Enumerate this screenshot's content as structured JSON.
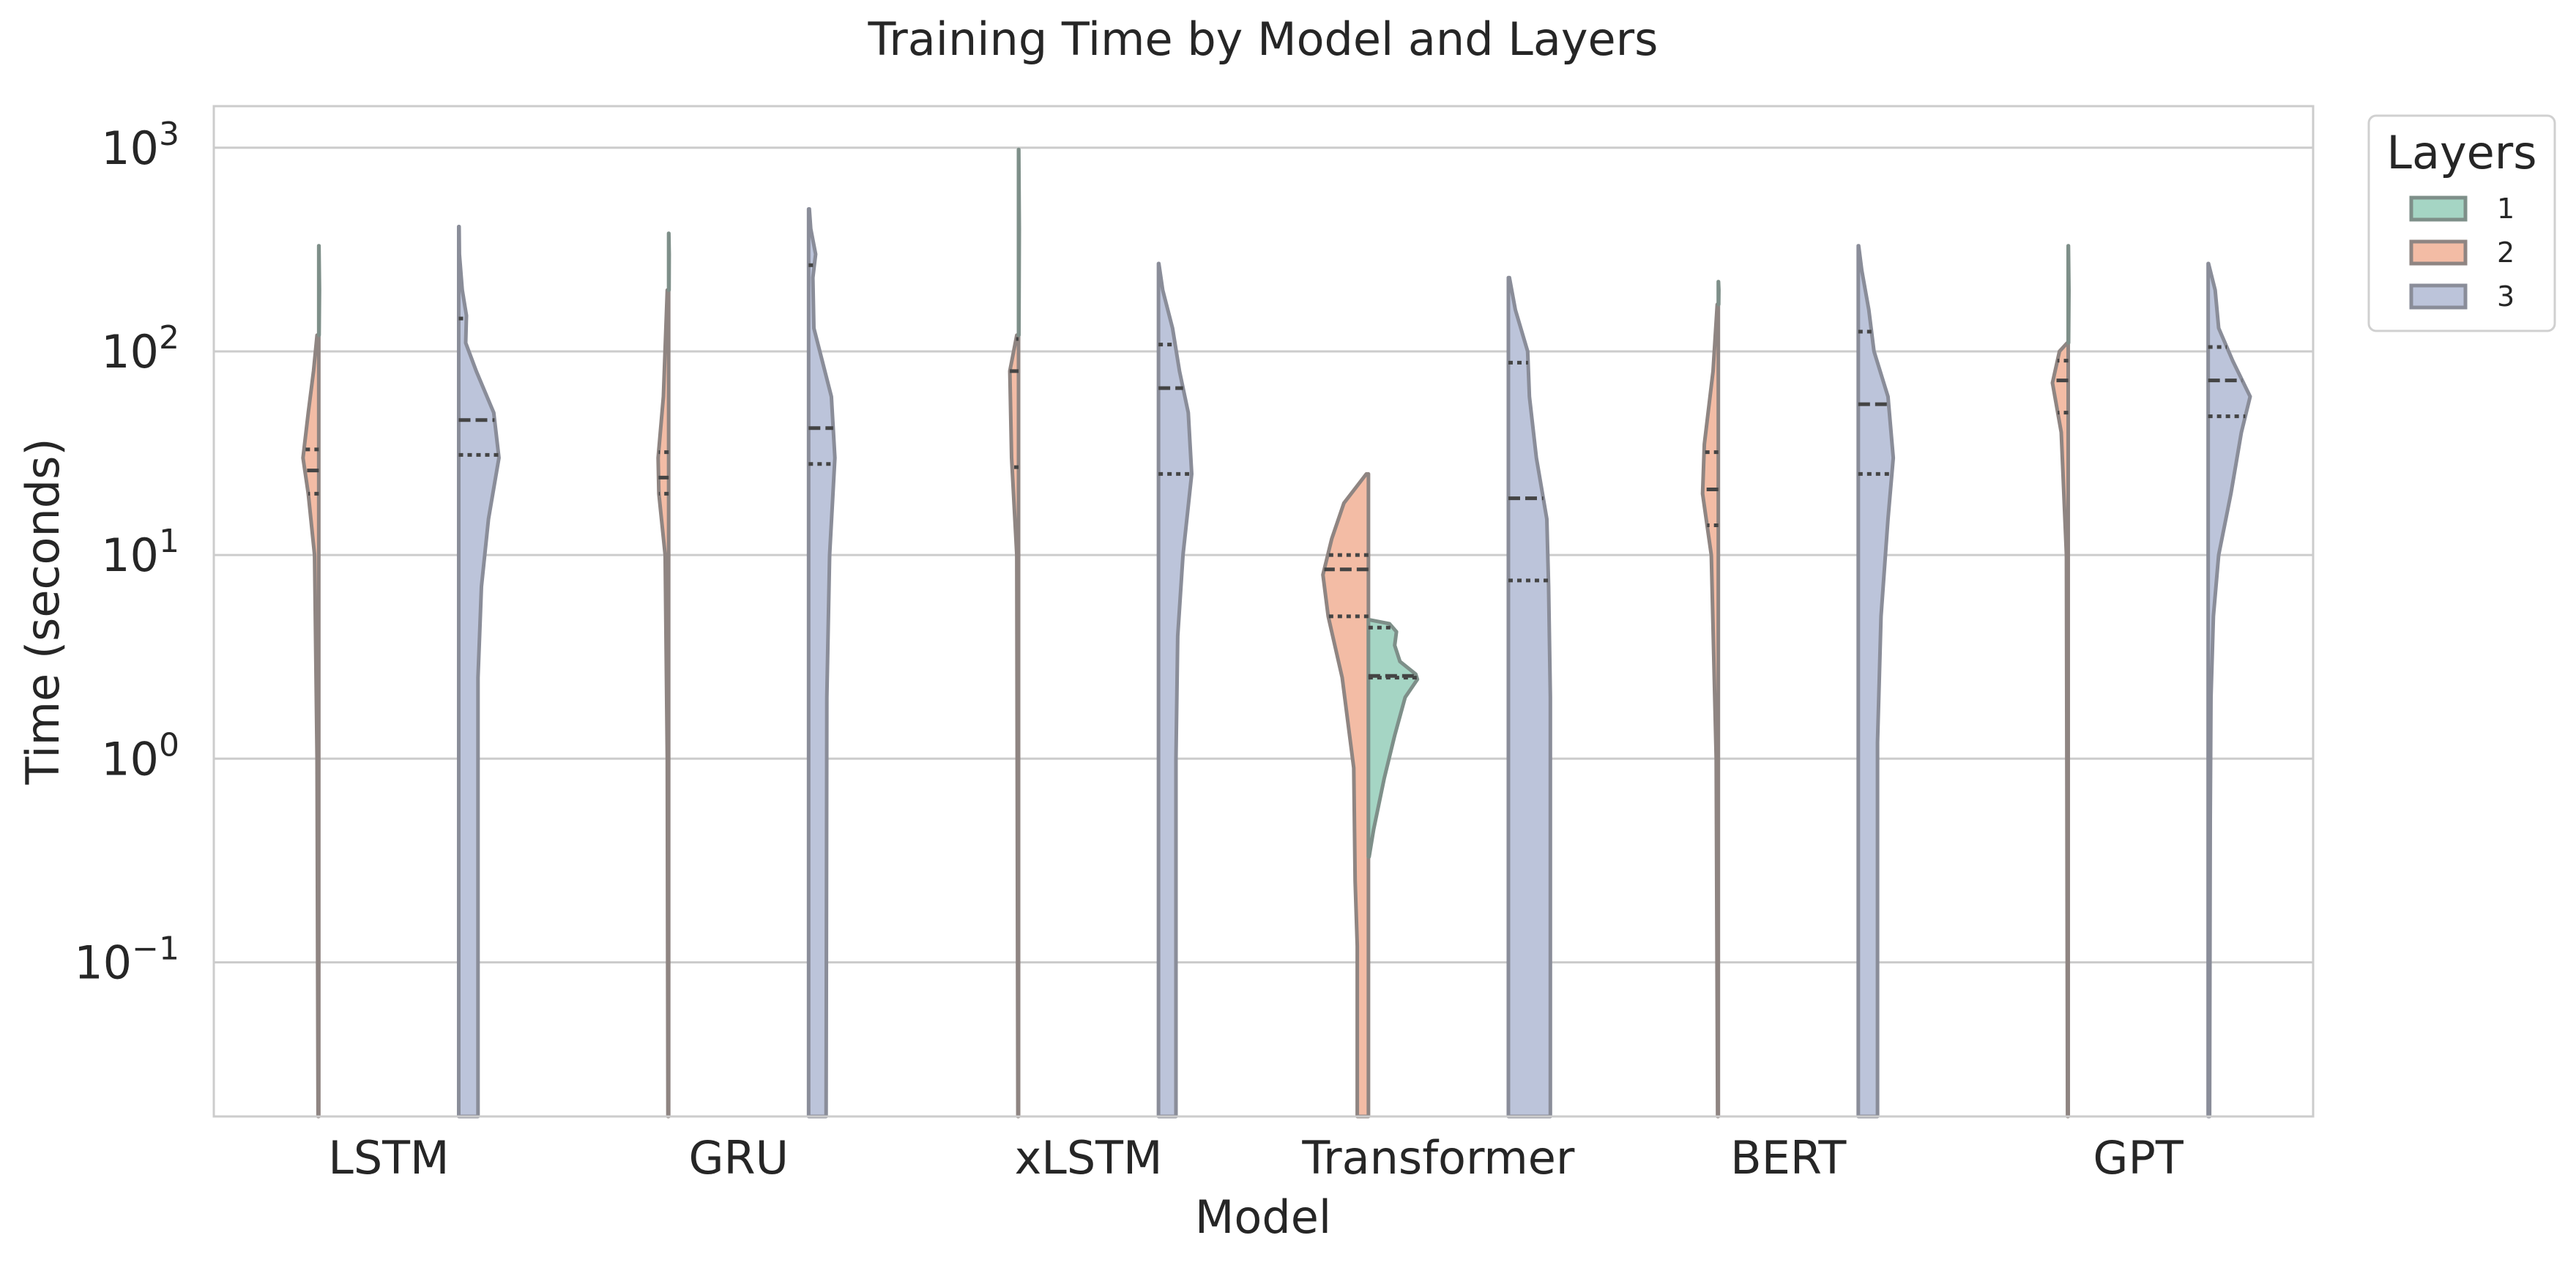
{
  "chart_data": {
    "type": "violin",
    "title": "Training Time by Model and Layers",
    "xlabel": "Model",
    "ylabel": "Time (seconds)",
    "yscale": "log",
    "ylim": [
      0.0175,
      1600
    ],
    "grid": true,
    "categories": [
      "LSTM",
      "GRU",
      "xLSTM",
      "Transformer",
      "BERT",
      "GPT"
    ],
    "y_ticks": [
      {
        "value": 0.1,
        "base": "10",
        "exp": "−1"
      },
      {
        "value": 1,
        "base": "10",
        "exp": "0"
      },
      {
        "value": 10,
        "base": "10",
        "exp": "1"
      },
      {
        "value": 100,
        "base": "10",
        "exp": "2"
      },
      {
        "value": 1000,
        "base": "10",
        "exp": "3"
      }
    ],
    "legend": {
      "title": "Layers",
      "placement": "outside right, top",
      "items": [
        {
          "label": "1",
          "color": "#a5d5c4",
          "edge": "#7e8f89"
        },
        {
          "label": "2",
          "color": "#f3bca5",
          "edge": "#8f8582"
        },
        {
          "label": "3",
          "color": "#bcc4da",
          "edge": "#8a8d99"
        }
      ]
    },
    "series": [
      {
        "name": "2",
        "side": "left",
        "slot": 0,
        "color": "#f3bca5",
        "violins": [
          {
            "category": "LSTM",
            "min": 0.0175,
            "max": 120,
            "q1": 20,
            "median": 26,
            "q3": 33,
            "profile": [
              [
                0.0175,
                0.02
              ],
              [
                1,
                0.05
              ],
              [
                10,
                0.12
              ],
              [
                20,
                0.3
              ],
              [
                30,
                0.45
              ],
              [
                50,
                0.3
              ],
              [
                80,
                0.15
              ],
              [
                120,
                0.05
              ]
            ]
          },
          {
            "category": "GRU",
            "min": 0.0175,
            "max": 200,
            "q1": 20,
            "median": 24,
            "q3": 32,
            "profile": [
              [
                0.0175,
                0.02
              ],
              [
                1,
                0.04
              ],
              [
                10,
                0.1
              ],
              [
                20,
                0.28
              ],
              [
                30,
                0.3
              ],
              [
                60,
                0.15
              ],
              [
                200,
                0.04
              ]
            ]
          },
          {
            "category": "xLSTM",
            "min": 0.0175,
            "max": 120,
            "q1": 27,
            "median": 80,
            "q3": 115,
            "profile": [
              [
                0.0175,
                0.02
              ],
              [
                10,
                0.05
              ],
              [
                30,
                0.2
              ],
              [
                80,
                0.25
              ],
              [
                120,
                0.05
              ]
            ]
          },
          {
            "category": "Transformer",
            "min": 0.0175,
            "max": 25,
            "q1": 5,
            "median": 8.5,
            "q3": 10,
            "profile": [
              [
                0.0175,
                0.32
              ],
              [
                0.12,
                0.32
              ],
              [
                0.25,
                0.38
              ],
              [
                0.9,
                0.42
              ],
              [
                2.5,
                0.75
              ],
              [
                5,
                1.15
              ],
              [
                8,
                1.3
              ],
              [
                12,
                1.05
              ],
              [
                18,
                0.7
              ],
              [
                25,
                0.06
              ]
            ]
          },
          {
            "category": "BERT",
            "min": 0.0175,
            "max": 170,
            "q1": 14,
            "median": 21,
            "q3": 32,
            "profile": [
              [
                0.0175,
                0.02
              ],
              [
                1,
                0.06
              ],
              [
                10,
                0.2
              ],
              [
                20,
                0.45
              ],
              [
                35,
                0.4
              ],
              [
                80,
                0.15
              ],
              [
                170,
                0.03
              ]
            ]
          },
          {
            "category": "GPT",
            "min": 0.0175,
            "max": 110,
            "q1": 50,
            "median": 72,
            "q3": 90,
            "profile": [
              [
                0.0175,
                0.02
              ],
              [
                10,
                0.05
              ],
              [
                40,
                0.2
              ],
              [
                70,
                0.45
              ],
              [
                100,
                0.25
              ],
              [
                110,
                0.03
              ]
            ]
          }
        ]
      },
      {
        "name": "3",
        "side": "right",
        "slot": 1,
        "color": "#bcc4da",
        "violins": [
          {
            "category": "LSTM",
            "min": 0.0175,
            "max": 410,
            "q1": 31,
            "median": 46,
            "q3": 145,
            "profile": [
              [
                0.0175,
                0.55
              ],
              [
                2.5,
                0.55
              ],
              [
                7,
                0.65
              ],
              [
                15,
                0.85
              ],
              [
                30,
                1.15
              ],
              [
                50,
                1.0
              ],
              [
                80,
                0.5
              ],
              [
                110,
                0.2
              ],
              [
                150,
                0.22
              ],
              [
                200,
                0.1
              ],
              [
                300,
                0.02
              ],
              [
                410,
                0.01
              ]
            ]
          },
          {
            "category": "GRU",
            "min": 0.0175,
            "max": 500,
            "q1": 28,
            "median": 42,
            "q3": 265,
            "profile": [
              [
                0.0175,
                0.5
              ],
              [
                2,
                0.52
              ],
              [
                10,
                0.6
              ],
              [
                30,
                0.75
              ],
              [
                60,
                0.65
              ],
              [
                130,
                0.15
              ],
              [
                230,
                0.12
              ],
              [
                300,
                0.2
              ],
              [
                400,
                0.06
              ],
              [
                500,
                0.02
              ]
            ]
          },
          {
            "category": "xLSTM",
            "min": 0.0175,
            "max": 270,
            "q1": 25,
            "median": 66,
            "q3": 108,
            "profile": [
              [
                0.0175,
                0.5
              ],
              [
                1,
                0.5
              ],
              [
                4,
                0.55
              ],
              [
                10,
                0.7
              ],
              [
                25,
                0.95
              ],
              [
                50,
                0.85
              ],
              [
                80,
                0.6
              ],
              [
                130,
                0.4
              ],
              [
                200,
                0.12
              ],
              [
                270,
                0.01
              ]
            ]
          },
          {
            "category": "Transformer",
            "min": 0.0175,
            "max": 230,
            "q1": 7.5,
            "median": 19,
            "q3": 88,
            "profile": [
              [
                0.0175,
                1.2
              ],
              [
                0.5,
                1.2
              ],
              [
                2,
                1.2
              ],
              [
                7,
                1.15
              ],
              [
                15,
                1.1
              ],
              [
                30,
                0.8
              ],
              [
                60,
                0.6
              ],
              [
                100,
                0.55
              ],
              [
                160,
                0.2
              ],
              [
                230,
                0.03
              ]
            ]
          },
          {
            "category": "BERT",
            "min": 0.0175,
            "max": 330,
            "q1": 25,
            "median": 55,
            "q3": 125,
            "profile": [
              [
                0.0175,
                0.55
              ],
              [
                1.2,
                0.55
              ],
              [
                5,
                0.65
              ],
              [
                15,
                0.85
              ],
              [
                30,
                1.0
              ],
              [
                60,
                0.85
              ],
              [
                100,
                0.45
              ],
              [
                160,
                0.3
              ],
              [
                250,
                0.1
              ],
              [
                330,
                0.01
              ]
            ]
          },
          {
            "category": "GPT",
            "min": 0.0175,
            "max": 270,
            "q1": 48,
            "median": 72,
            "q3": 105,
            "profile": [
              [
                0.0175,
                0.04
              ],
              [
                0.5,
                0.06
              ],
              [
                2,
                0.08
              ],
              [
                5,
                0.15
              ],
              [
                10,
                0.3
              ],
              [
                20,
                0.65
              ],
              [
                40,
                0.95
              ],
              [
                60,
                1.2
              ],
              [
                90,
                0.7
              ],
              [
                130,
                0.3
              ],
              [
                200,
                0.2
              ],
              [
                270,
                0.01
              ]
            ]
          }
        ]
      },
      {
        "name": "1",
        "side": "right",
        "slot": 0,
        "color": "#a5d5c4",
        "violins": [
          {
            "category": "LSTM",
            "min": 120,
            "max": 330,
            "q1": null,
            "median": null,
            "q3": null,
            "profile": [
              [
                120,
                0.01
              ],
              [
                200,
                0.02
              ],
              [
                330,
                0.005
              ]
            ]
          },
          {
            "category": "GRU",
            "min": 200,
            "max": 380,
            "q1": null,
            "median": null,
            "q3": null,
            "profile": [
              [
                200,
                0.01
              ],
              [
                300,
                0.015
              ],
              [
                380,
                0.005
              ]
            ]
          },
          {
            "category": "xLSTM",
            "min": 120,
            "max": 980,
            "q1": null,
            "median": null,
            "q3": null,
            "profile": [
              [
                120,
                0.01
              ],
              [
                400,
                0.02
              ],
              [
                980,
                0.005
              ]
            ]
          },
          {
            "category": "Transformer",
            "min": 0.33,
            "max": 4.8,
            "q1": 2.5,
            "median": 2.55,
            "q3": 4.4,
            "profile": [
              [
                0.33,
                0.02
              ],
              [
                0.45,
                0.15
              ],
              [
                0.8,
                0.45
              ],
              [
                1.3,
                0.75
              ],
              [
                2,
                1.05
              ],
              [
                2.45,
                1.4
              ],
              [
                2.6,
                1.35
              ],
              [
                3,
                0.9
              ],
              [
                3.6,
                0.75
              ],
              [
                4.2,
                0.8
              ],
              [
                4.6,
                0.6
              ],
              [
                4.8,
                0.05
              ]
            ]
          },
          {
            "category": "BERT",
            "min": 170,
            "max": 220,
            "q1": null,
            "median": null,
            "q3": null,
            "profile": [
              [
                170,
                0.01
              ],
              [
                200,
                0.015
              ],
              [
                220,
                0.005
              ]
            ]
          },
          {
            "category": "GPT",
            "min": 110,
            "max": 330,
            "q1": null,
            "median": null,
            "q3": null,
            "profile": [
              [
                110,
                0.01
              ],
              [
                200,
                0.02
              ],
              [
                330,
                0.005
              ]
            ]
          }
        ]
      }
    ]
  }
}
